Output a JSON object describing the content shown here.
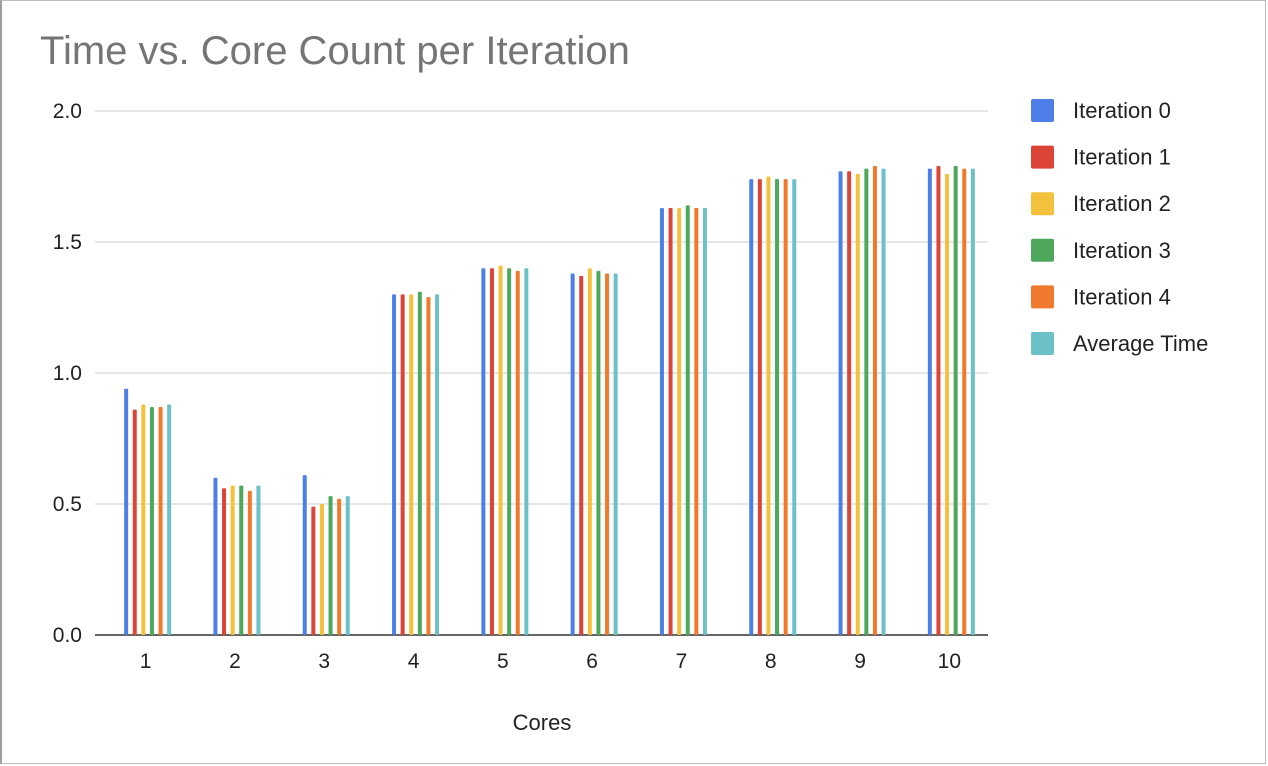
{
  "chart_data": {
    "type": "bar",
    "title": "Time vs. Core Count per Iteration",
    "xlabel": "Cores",
    "ylabel": "",
    "ylim": [
      0,
      2.0
    ],
    "yticks": [
      0.0,
      0.5,
      1.0,
      1.5,
      2.0
    ],
    "ytick_labels": [
      "0.0",
      "0.5",
      "1.0",
      "1.5",
      "2.0"
    ],
    "categories": [
      "1",
      "2",
      "3",
      "4",
      "5",
      "6",
      "7",
      "8",
      "9",
      "10"
    ],
    "grid": true,
    "legend_position": "right",
    "series": [
      {
        "name": "Iteration 0",
        "color": "#4e7fe8",
        "values": [
          0.94,
          0.6,
          0.61,
          1.3,
          1.4,
          1.38,
          1.63,
          1.74,
          1.77,
          1.78
        ]
      },
      {
        "name": "Iteration 1",
        "color": "#db4437",
        "values": [
          0.86,
          0.56,
          0.49,
          1.3,
          1.4,
          1.37,
          1.63,
          1.74,
          1.77,
          1.79
        ]
      },
      {
        "name": "Iteration 2",
        "color": "#f4c13d",
        "values": [
          0.88,
          0.57,
          0.5,
          1.3,
          1.41,
          1.4,
          1.63,
          1.75,
          1.76,
          1.76
        ]
      },
      {
        "name": "Iteration 3",
        "color": "#4ea85c",
        "values": [
          0.87,
          0.57,
          0.53,
          1.31,
          1.4,
          1.39,
          1.64,
          1.74,
          1.78,
          1.79
        ]
      },
      {
        "name": "Iteration 4",
        "color": "#ef7a2d",
        "values": [
          0.87,
          0.55,
          0.52,
          1.29,
          1.39,
          1.38,
          1.63,
          1.74,
          1.79,
          1.78
        ]
      },
      {
        "name": "Average Time",
        "color": "#6cc0c8",
        "values": [
          0.88,
          0.57,
          0.53,
          1.3,
          1.4,
          1.38,
          1.63,
          1.74,
          1.78,
          1.78
        ]
      }
    ]
  }
}
